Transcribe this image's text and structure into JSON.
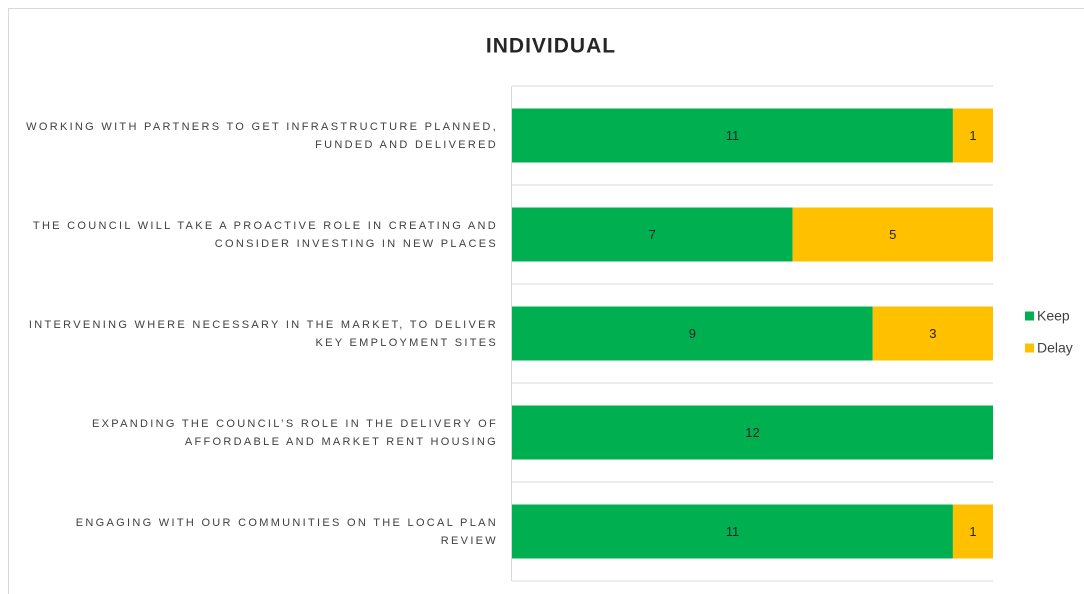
{
  "chart_data": {
    "type": "stacked-bar-horizontal",
    "title": "INDIVIDUAL",
    "categories": [
      "WORKING WITH PARTNERS TO GET INFRASTRUCTURE PLANNED, FUNDED AND DELIVERED",
      "THE COUNCIL WILL TAKE A PROACTIVE ROLE IN CREATING AND CONSIDER INVESTING IN NEW PLACES",
      "INTERVENING WHERE NECESSARY IN THE MARKET, TO DELIVER KEY EMPLOYMENT SITES",
      "EXPANDING THE COUNCIL’S ROLE IN THE DELIVERY OF AFFORDABLE AND MARKET RENT HOUSING",
      "ENGAGING WITH OUR COMMUNITIES ON THE LOCAL PLAN REVIEW"
    ],
    "series": [
      {
        "name": "Keep",
        "color": "#00b050",
        "values": [
          11,
          7,
          9,
          12,
          11
        ]
      },
      {
        "name": "Delay",
        "color": "#ffc000",
        "values": [
          1,
          5,
          3,
          null,
          1
        ]
      }
    ],
    "xlim": [
      0,
      12
    ],
    "legend": "right"
  }
}
